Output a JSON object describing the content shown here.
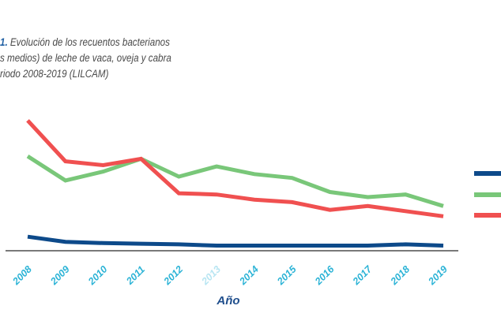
{
  "title_lines": {
    "number": "1.",
    "line1": " Evolución de los recuentos bacterianos",
    "line2": "s medios) de leche de vaca, oveja y cabra",
    "line3": "riodo 2008-2019 (LILCAM)"
  },
  "colors": {
    "axis": "#4d4d4d",
    "tick_label": "#2bb3d6",
    "xlabel": "#1f4e8c"
  },
  "chart_data": {
    "type": "line",
    "x": [
      "2008",
      "2009",
      "2010",
      "2011",
      "2012",
      "2013",
      "2014",
      "2015",
      "2016",
      "2017",
      "2018",
      "2019"
    ],
    "xlabel": "Año",
    "ylabel": "",
    "ylim": [
      0,
      100
    ],
    "grid": false,
    "legend_placement": "right (labels cut off)",
    "series": [
      {
        "key": "blue",
        "color": "#0d4a8a",
        "values": [
          11,
          7,
          6,
          5.5,
          5,
          4,
          4,
          4,
          4,
          4,
          5,
          4
        ]
      },
      {
        "key": "green",
        "color": "#79c779",
        "values": [
          74,
          55,
          62,
          72,
          58,
          66,
          60,
          57,
          46,
          42,
          44,
          35
        ]
      },
      {
        "key": "red",
        "color": "#f05050",
        "values": [
          102,
          70,
          67,
          72,
          45,
          44,
          40,
          38,
          32,
          35,
          31,
          27
        ]
      }
    ]
  }
}
